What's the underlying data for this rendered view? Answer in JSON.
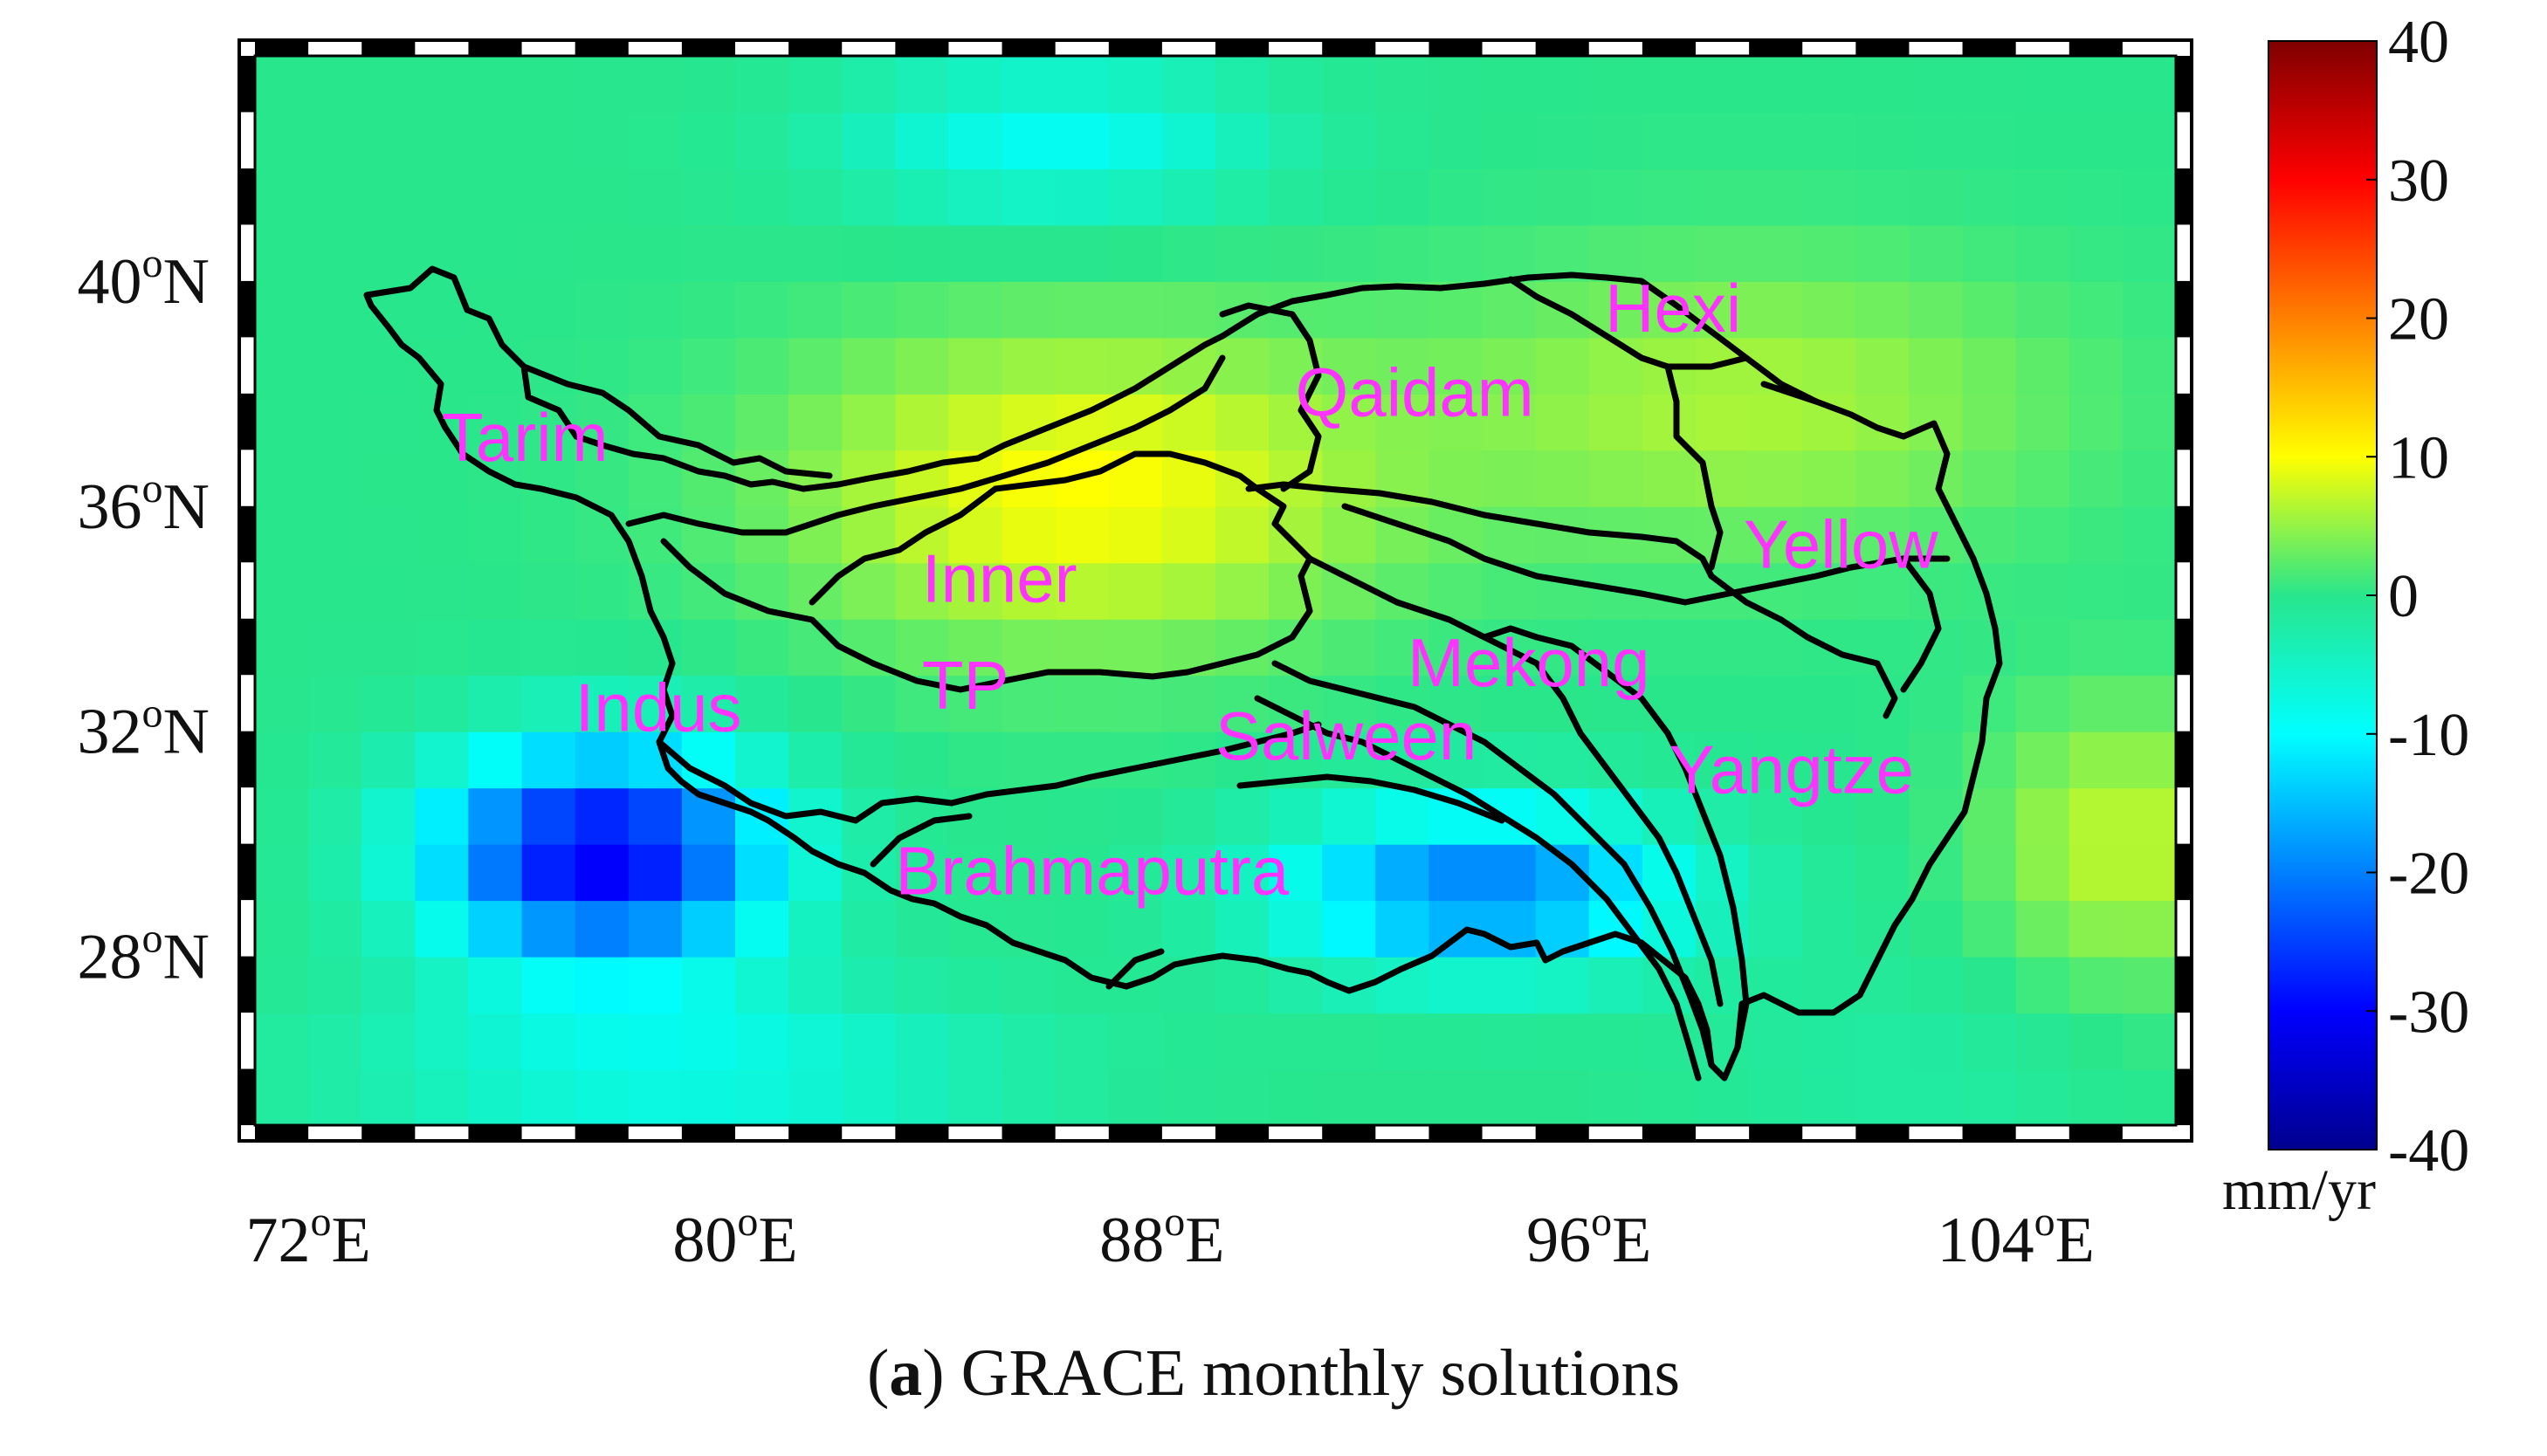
{
  "map": {
    "lat_ticks": [
      "40oN",
      "36oN",
      "32oN",
      "28oN"
    ],
    "lon_ticks": [
      "72oE",
      "80oE",
      "88oE",
      "96oE",
      "104oE"
    ],
    "lat_values": [
      40,
      36,
      32,
      28
    ],
    "lon_values": [
      72,
      80,
      88,
      96,
      104
    ],
    "extent": {
      "lon": [
        71,
        107
      ],
      "lat": [
        25,
        44
      ]
    },
    "basin_labels": [
      {
        "name": "Tarim",
        "lon": 74.5,
        "lat": 36.8
      },
      {
        "name": "Qaidam",
        "lon": 90.5,
        "lat": 37.6
      },
      {
        "name": "Hexi",
        "lon": 96.3,
        "lat": 39.1
      },
      {
        "name": "Yellow",
        "lon": 98.9,
        "lat": 34.9
      },
      {
        "name": "Inner",
        "lon": 83.5,
        "lat": 34.3
      },
      {
        "name": "TP",
        "lon": 83.5,
        "lat": 32.4
      },
      {
        "name": "Mekong",
        "lon": 92.6,
        "lat": 32.8
      },
      {
        "name": "Indus",
        "lon": 77.0,
        "lat": 32.0
      },
      {
        "name": "Salween",
        "lon": 89.0,
        "lat": 31.5
      },
      {
        "name": "Yangtze",
        "lon": 97.5,
        "lat": 30.9
      },
      {
        "name": "Brahmaputra",
        "lon": 83.0,
        "lat": 29.1
      }
    ],
    "label_color": "#ff33ff"
  },
  "colorbar": {
    "ticks": [
      "40",
      "30",
      "20",
      "10",
      "0",
      "-10",
      "-20",
      "-30",
      "-40"
    ],
    "tick_values": [
      40,
      30,
      20,
      10,
      0,
      -10,
      -20,
      -30,
      -40
    ],
    "unit": "mm/yr",
    "range": [
      -40,
      40
    ],
    "colormap": "jet"
  },
  "caption": {
    "letter": "a",
    "text": " GRACE monthly solutions"
  }
}
